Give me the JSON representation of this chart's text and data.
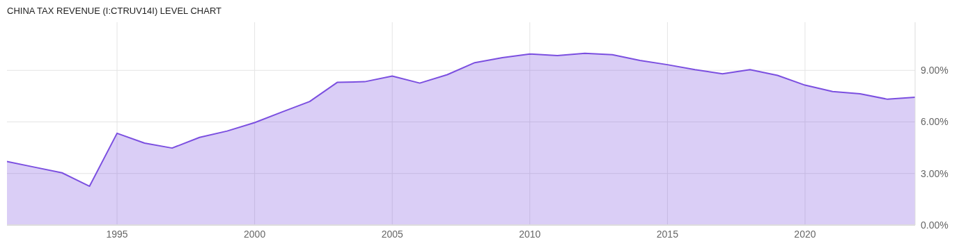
{
  "chart_data": {
    "type": "area",
    "title": "CHINA TAX REVENUE (I:CTRUV14I) LEVEL CHART",
    "x": [
      1991,
      1992,
      1993,
      1994,
      1995,
      1996,
      1997,
      1998,
      1999,
      2000,
      2001,
      2002,
      2003,
      2004,
      2005,
      2006,
      2007,
      2008,
      2009,
      2010,
      2011,
      2012,
      2013,
      2014,
      2015,
      2016,
      2017,
      2018,
      2019,
      2020,
      2021,
      2022,
      2023,
      2024
    ],
    "series": [
      {
        "color": "#7b4fe0",
        "values": [
          3.7,
          3.37,
          3.04,
          2.26,
          5.34,
          4.77,
          4.48,
          5.1,
          5.47,
          5.96,
          6.58,
          7.19,
          8.3,
          8.34,
          8.67,
          8.26,
          8.75,
          9.45,
          9.74,
          9.95,
          9.86,
          9.99,
          9.91,
          9.58,
          9.33,
          9.04,
          8.8,
          9.04,
          8.71,
          8.14,
          7.77,
          7.64,
          7.32,
          7.44
        ]
      }
    ],
    "xlim": [
      1991,
      2024
    ],
    "xticks": [
      1995,
      2000,
      2005,
      2010,
      2015,
      2020
    ],
    "ylim": [
      0,
      11.8
    ],
    "yticks": [
      {
        "value": 0,
        "label": "0.00%"
      },
      {
        "value": 3,
        "label": "3.00%"
      },
      {
        "value": 6,
        "label": "6.00%"
      },
      {
        "value": 9,
        "label": "9.00%"
      }
    ],
    "grid": true,
    "legend": false,
    "marker": "none",
    "line_style": "solid"
  }
}
